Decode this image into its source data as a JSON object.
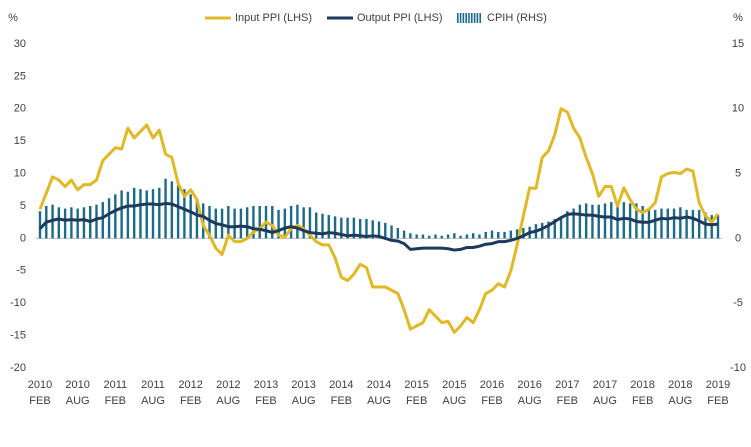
{
  "chart_data": {
    "type": "line_bar",
    "y_unit_label": "%",
    "y2_unit_label": "%",
    "categories": [
      "2010\nFEB",
      null,
      null,
      null,
      null,
      null,
      "2010\nAUG",
      null,
      null,
      null,
      null,
      null,
      "2011\nFEB",
      null,
      null,
      null,
      null,
      null,
      "2011\nAUG",
      null,
      null,
      null,
      null,
      null,
      "2012\nFEB",
      null,
      null,
      null,
      null,
      null,
      "2012\nAUG",
      null,
      null,
      null,
      null,
      null,
      "2013\nFEB",
      null,
      null,
      null,
      null,
      null,
      "2013\nAUG",
      null,
      null,
      null,
      null,
      null,
      "2014\nFEB",
      null,
      null,
      null,
      null,
      null,
      "2014\nAUG",
      null,
      null,
      null,
      null,
      null,
      "2015\nFEB",
      null,
      null,
      null,
      null,
      null,
      "2015\nAUG",
      null,
      null,
      null,
      null,
      null,
      "2016\nFEB",
      null,
      null,
      null,
      null,
      null,
      "2016\nAUG",
      null,
      null,
      null,
      null,
      null,
      "2017\nFEB",
      null,
      null,
      null,
      null,
      null,
      "2017\nAUG",
      null,
      null,
      null,
      null,
      null,
      "2018\nFEB",
      null,
      null,
      null,
      null,
      null,
      "2018\nAUG",
      null,
      null,
      null,
      null,
      null,
      "2019\nFEB"
    ],
    "series": [
      {
        "name": "Input PPI (LHS)",
        "kind": "line",
        "axis": "y",
        "color": "#e2b824",
        "values": [
          4.5,
          7,
          9.5,
          9,
          8,
          9,
          7.5,
          8.3,
          8.3,
          9,
          12,
          13,
          14,
          13.8,
          17,
          15.5,
          16.5,
          17.5,
          15.5,
          16.7,
          13,
          12.5,
          8.5,
          6.5,
          7.5,
          6,
          2,
          0.5,
          -1.5,
          -2.5,
          0.5,
          -0.5,
          -0.5,
          0,
          1,
          1.5,
          2.5,
          2,
          0.5,
          0.2,
          1.5,
          2,
          1.5,
          0.5,
          -0.5,
          -1,
          -1,
          -3,
          -6,
          -6.5,
          -5.5,
          -4,
          -4.5,
          -7.5,
          -7.5,
          -7.5,
          -8,
          -8.5,
          -11,
          -14,
          -13.5,
          -13,
          -11,
          -12,
          -13,
          -12.8,
          -14.5,
          -13.5,
          -12.2,
          -13,
          -11,
          -8.5,
          -8,
          -7,
          -7.5,
          -5,
          -1,
          3.5,
          7.8,
          7.7,
          12.5,
          13.5,
          16,
          20,
          19.5,
          17,
          15.5,
          12.5,
          10,
          6.5,
          8,
          8,
          5,
          7.8,
          6,
          4.5,
          4,
          4.5,
          5.5,
          9.5,
          10,
          10.2,
          10,
          10.7,
          10.4,
          5.5,
          3.5,
          2.5,
          3.8
        ]
      },
      {
        "name": "Output PPI (LHS)",
        "kind": "line",
        "axis": "y",
        "color": "#1d3a5c",
        "values": [
          1.5,
          2.5,
          2.8,
          3,
          2.8,
          2.9,
          2.8,
          2.9,
          2.6,
          3,
          3.2,
          3.8,
          4.3,
          4.7,
          5,
          5,
          5.2,
          5.3,
          5.3,
          5.2,
          5.4,
          5.3,
          4.9,
          4.5,
          4.1,
          3.6,
          3.4,
          2.8,
          2.3,
          2.1,
          1.8,
          1.8,
          1.9,
          1.8,
          1.5,
          1.4,
          1.2,
          0.9,
          1.2,
          1.6,
          1.8,
          1.6,
          1.2,
          0.9,
          0.8,
          0.7,
          0.9,
          0.8,
          0.6,
          0.4,
          0.5,
          0.4,
          0.3,
          0.4,
          0.3,
          0,
          -0.3,
          -0.4,
          -0.8,
          -1.7,
          -1.6,
          -1.5,
          -1.5,
          -1.5,
          -1.5,
          -1.6,
          -1.8,
          -1.7,
          -1.4,
          -1.4,
          -1.2,
          -0.9,
          -0.8,
          -0.5,
          -0.5,
          -0.3,
          0,
          0.4,
          0.9,
          1.1,
          1.5,
          2,
          2.6,
          3.2,
          3.7,
          3.8,
          3.7,
          3.6,
          3.6,
          3.4,
          3.3,
          3.3,
          2.9,
          3.1,
          3,
          2.6,
          2.5,
          2.5,
          2.8,
          3.1,
          3,
          3.2,
          3.1,
          3.3,
          3.1,
          2.7,
          2.2,
          2.1,
          2.2
        ]
      },
      {
        "name": "CPIH (RHS)",
        "kind": "bar",
        "axis": "y2",
        "color": "#1b6a8a",
        "values": [
          2.1,
          2.5,
          2.6,
          2.4,
          2.3,
          2.4,
          2.3,
          2.4,
          2.5,
          2.6,
          2.8,
          3.1,
          3.4,
          3.7,
          3.6,
          3.9,
          3.8,
          3.7,
          3.8,
          3.9,
          4.6,
          4.4,
          4.1,
          3.8,
          3.4,
          3.0,
          2.7,
          2.5,
          2.3,
          2.3,
          2.5,
          2.3,
          2.3,
          2.4,
          2.5,
          2.5,
          2.5,
          2.5,
          2.2,
          2.3,
          2.5,
          2.6,
          2.4,
          2.4,
          2.0,
          1.9,
          1.8,
          1.7,
          1.6,
          1.6,
          1.6,
          1.5,
          1.5,
          1.4,
          1.3,
          1.2,
          1.0,
          0.8,
          0.6,
          0.4,
          0.3,
          0.3,
          0.2,
          0.3,
          0.2,
          0.3,
          0.4,
          0.2,
          0.3,
          0.4,
          0.3,
          0.5,
          0.6,
          0.5,
          0.5,
          0.6,
          0.7,
          0.8,
          0.9,
          1.1,
          1.2,
          1.3,
          1.5,
          1.7,
          2.1,
          2.3,
          2.6,
          2.7,
          2.6,
          2.6,
          2.7,
          2.8,
          2.8,
          2.8,
          2.7,
          2.7,
          2.5,
          2.3,
          2.2,
          2.3,
          2.3,
          2.3,
          2.4,
          2.2,
          2.2,
          2.2,
          2.0,
          1.8,
          1.8
        ]
      }
    ],
    "ylim": [
      -20,
      30
    ],
    "yticks": [
      -20,
      -15,
      -10,
      -5,
      0,
      5,
      10,
      15,
      20,
      25,
      30
    ],
    "y2lim": [
      -10,
      15
    ],
    "y2ticks": [
      -10,
      -5,
      0,
      5,
      10,
      15
    ],
    "grid": false,
    "legend": "top"
  }
}
